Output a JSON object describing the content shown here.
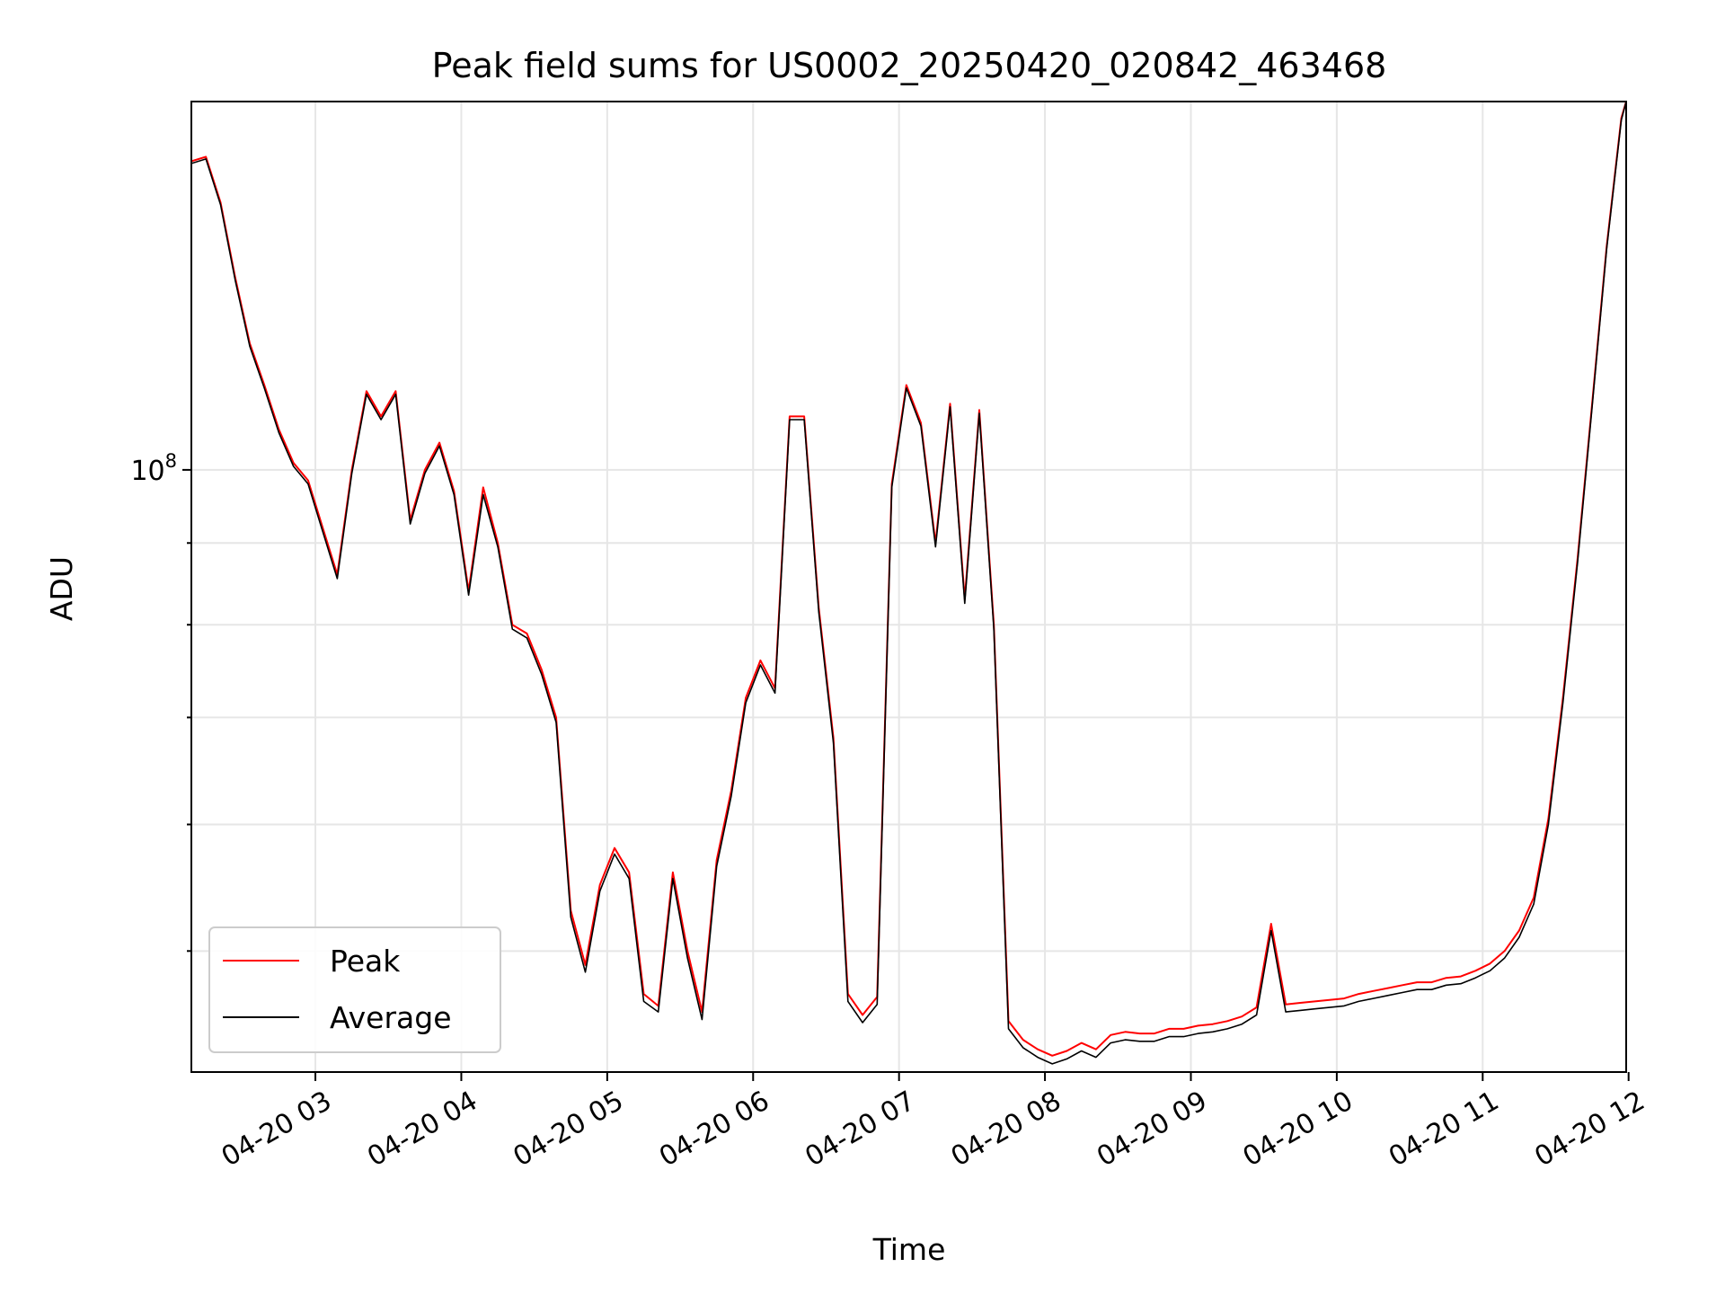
{
  "chart_data": {
    "type": "line",
    "title": "Peak field sums for US0002_20250420_020842_463468",
    "xlabel": "Time",
    "ylabel": "ADU",
    "y_scale": "log",
    "y_major_tick_label": "10^8",
    "y_major_tick_value": 100000000,
    "ylim": [
      42000000,
      170000000
    ],
    "xlim": [
      "2025-04-20T02:09",
      "2025-04-20T11:59"
    ],
    "x_tick_labels": [
      "04-20 03",
      "04-20 04",
      "04-20 05",
      "04-20 06",
      "04-20 07",
      "04-20 08",
      "04-20 09",
      "04-20 10",
      "04-20 11",
      "04-20 12"
    ],
    "x_ticks": [
      "2025-04-20T03:00",
      "2025-04-20T04:00",
      "2025-04-20T05:00",
      "2025-04-20T06:00",
      "2025-04-20T07:00",
      "2025-04-20T08:00",
      "2025-04-20T09:00",
      "2025-04-20T10:00",
      "2025-04-20T11:00",
      "2025-04-20T12:00"
    ],
    "grid": true,
    "legend_position": "lower-left",
    "x": [
      "2025-04-20T02:09",
      "2025-04-20T02:15",
      "2025-04-20T02:21",
      "2025-04-20T02:27",
      "2025-04-20T02:33",
      "2025-04-20T02:39",
      "2025-04-20T02:45",
      "2025-04-20T02:51",
      "2025-04-20T02:57",
      "2025-04-20T03:03",
      "2025-04-20T03:09",
      "2025-04-20T03:15",
      "2025-04-20T03:21",
      "2025-04-20T03:27",
      "2025-04-20T03:33",
      "2025-04-20T03:39",
      "2025-04-20T03:45",
      "2025-04-20T03:51",
      "2025-04-20T03:57",
      "2025-04-20T04:03",
      "2025-04-20T04:09",
      "2025-04-20T04:15",
      "2025-04-20T04:21",
      "2025-04-20T04:27",
      "2025-04-20T04:33",
      "2025-04-20T04:39",
      "2025-04-20T04:45",
      "2025-04-20T04:51",
      "2025-04-20T04:57",
      "2025-04-20T05:03",
      "2025-04-20T05:09",
      "2025-04-20T05:15",
      "2025-04-20T05:21",
      "2025-04-20T05:27",
      "2025-04-20T05:33",
      "2025-04-20T05:39",
      "2025-04-20T05:45",
      "2025-04-20T05:51",
      "2025-04-20T05:57",
      "2025-04-20T06:03",
      "2025-04-20T06:09",
      "2025-04-20T06:15",
      "2025-04-20T06:21",
      "2025-04-20T06:27",
      "2025-04-20T06:33",
      "2025-04-20T06:39",
      "2025-04-20T06:45",
      "2025-04-20T06:51",
      "2025-04-20T06:57",
      "2025-04-20T07:03",
      "2025-04-20T07:09",
      "2025-04-20T07:15",
      "2025-04-20T07:21",
      "2025-04-20T07:27",
      "2025-04-20T07:33",
      "2025-04-20T07:39",
      "2025-04-20T07:45",
      "2025-04-20T07:51",
      "2025-04-20T07:57",
      "2025-04-20T08:03",
      "2025-04-20T08:09",
      "2025-04-20T08:15",
      "2025-04-20T08:21",
      "2025-04-20T08:27",
      "2025-04-20T08:33",
      "2025-04-20T08:39",
      "2025-04-20T08:45",
      "2025-04-20T08:51",
      "2025-04-20T08:57",
      "2025-04-20T09:03",
      "2025-04-20T09:09",
      "2025-04-20T09:15",
      "2025-04-20T09:21",
      "2025-04-20T09:27",
      "2025-04-20T09:33",
      "2025-04-20T09:39",
      "2025-04-20T09:45",
      "2025-04-20T09:51",
      "2025-04-20T09:57",
      "2025-04-20T10:03",
      "2025-04-20T10:09",
      "2025-04-20T10:15",
      "2025-04-20T10:21",
      "2025-04-20T10:27",
      "2025-04-20T10:33",
      "2025-04-20T10:39",
      "2025-04-20T10:45",
      "2025-04-20T10:51",
      "2025-04-20T10:57",
      "2025-04-20T11:03",
      "2025-04-20T11:09",
      "2025-04-20T11:15",
      "2025-04-20T11:21",
      "2025-04-20T11:27",
      "2025-04-20T11:33",
      "2025-04-20T11:39",
      "2025-04-20T11:45",
      "2025-04-20T11:51",
      "2025-04-20T11:57",
      "2025-04-20T11:59"
    ],
    "series": [
      {
        "name": "Peak",
        "color": "#ff0000",
        "values": [
          156000000,
          157000000,
          147000000,
          132000000,
          120000000,
          113000000,
          106000000,
          101000000,
          98500000,
          92000000,
          86000000,
          100000000,
          112000000,
          108000000,
          112000000,
          93000000,
          100000000,
          104000000,
          97000000,
          84000000,
          97500000,
          90000000,
          80000000,
          79000000,
          75000000,
          70000000,
          53000000,
          49000000,
          55000000,
          58000000,
          56000000,
          47000000,
          46200000,
          56000000,
          50000000,
          45800000,
          57000000,
          63000000,
          72000000,
          76000000,
          73000000,
          108000000,
          108000000,
          82000000,
          68000000,
          47000000,
          45600000,
          46800000,
          98000000,
          113000000,
          107000000,
          90000000,
          110000000,
          83000000,
          109000000,
          80000000,
          45200000,
          44000000,
          43400000,
          43000000,
          43300000,
          43800000,
          43400000,
          44300000,
          44500000,
          44400000,
          44400000,
          44700000,
          44700000,
          44900000,
          45000000,
          45200000,
          45500000,
          46100000,
          52000000,
          46300000,
          46400000,
          46500000,
          46600000,
          46700000,
          47000000,
          47200000,
          47400000,
          47600000,
          47800000,
          47800000,
          48100000,
          48200000,
          48600000,
          49100000,
          50000000,
          51500000,
          54000000,
          60500000,
          72000000,
          88000000,
          110000000,
          138000000,
          166000000,
          170000000
        ]
      },
      {
        "name": "Average",
        "color": "#000000",
        "values": [
          155500000,
          156500000,
          146500000,
          131500000,
          119500000,
          112500000,
          105500000,
          100500000,
          98000000,
          91500000,
          85500000,
          99500000,
          111500000,
          107500000,
          111500000,
          92500000,
          99500000,
          103500000,
          96500000,
          83500000,
          96500000,
          89500000,
          79500000,
          78500000,
          74500000,
          69500000,
          52500000,
          48500000,
          54500000,
          57500000,
          55500000,
          46500000,
          45800000,
          55500000,
          49500000,
          45300000,
          56500000,
          62500000,
          71500000,
          75500000,
          72500000,
          107500000,
          107500000,
          81500000,
          67500000,
          46500000,
          45100000,
          46300000,
          97500000,
          112500000,
          106500000,
          89500000,
          109500000,
          82500000,
          108500000,
          79500000,
          44700000,
          43500000,
          42900000,
          42500000,
          42800000,
          43300000,
          42900000,
          43800000,
          44000000,
          43900000,
          43900000,
          44200000,
          44200000,
          44400000,
          44500000,
          44700000,
          45000000,
          45600000,
          51500000,
          45800000,
          45900000,
          46000000,
          46100000,
          46200000,
          46500000,
          46700000,
          46900000,
          47100000,
          47300000,
          47300000,
          47600000,
          47700000,
          48100000,
          48600000,
          49500000,
          51000000,
          53500000,
          60000000,
          71500000,
          87500000,
          109500000,
          137500000,
          165500000,
          170000000
        ]
      }
    ]
  }
}
